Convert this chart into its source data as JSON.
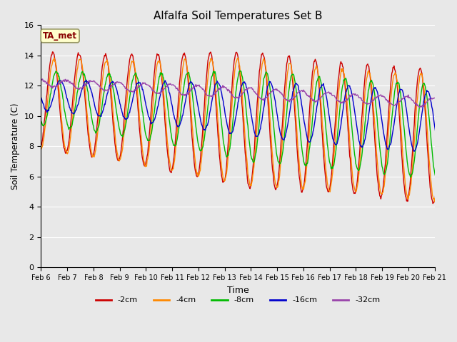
{
  "title": "Alfalfa Soil Temperatures Set B",
  "xlabel": "Time",
  "ylabel": "Soil Temperature (C)",
  "ylim": [
    0,
    16
  ],
  "yticks": [
    0,
    2,
    4,
    6,
    8,
    10,
    12,
    14,
    16
  ],
  "x_tick_labels": [
    "Feb 6",
    "Feb 7",
    "Feb 8",
    "Feb 9",
    "Feb 10",
    "Feb 11",
    "Feb 12",
    "Feb 13",
    "Feb 14",
    "Feb 15",
    "Feb 16",
    "Feb 17",
    "Feb 18",
    "Feb 19",
    "Feb 20",
    "Feb 21"
  ],
  "legend_labels": [
    "-2cm",
    "-4cm",
    "-8cm",
    "-16cm",
    "-32cm"
  ],
  "annotation_text": "TA_met",
  "annotation_color": "#880000",
  "annotation_bg": "#ffffcc",
  "bg_color": "#e8e8e8",
  "grid_color": "#ffffff",
  "line_colors": [
    "#cc0000",
    "#ff8800",
    "#00bb00",
    "#0000cc",
    "#9944aa"
  ],
  "line_width": 1.0
}
